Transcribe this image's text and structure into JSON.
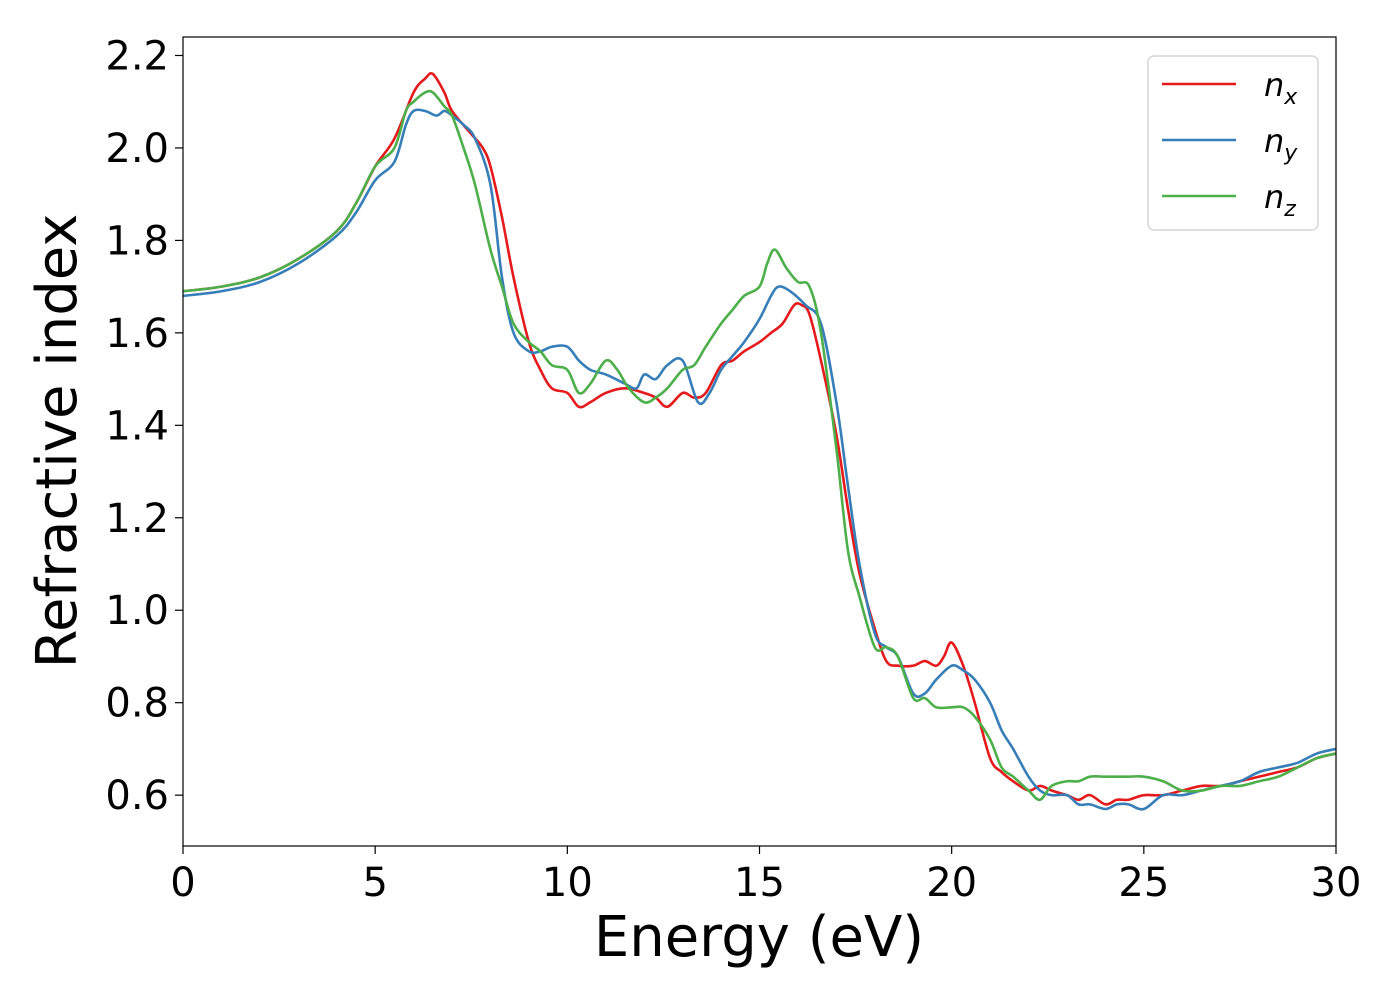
{
  "chart_data": {
    "type": "line",
    "title": "",
    "xlabel": "Energy (eV)",
    "ylabel": "Refractive index",
    "xlim": [
      0,
      30
    ],
    "ylim": [
      0.49,
      2.24
    ],
    "xticks": [
      0,
      5,
      10,
      15,
      20,
      25,
      30
    ],
    "xtick_labels": [
      "0",
      "5",
      "10",
      "15",
      "20",
      "25",
      "30"
    ],
    "yticks": [
      0.6,
      0.8,
      1.0,
      1.2,
      1.4,
      1.6,
      1.8,
      2.0,
      2.2
    ],
    "ytick_labels": [
      "0.6",
      "0.8",
      "1.0",
      "1.2",
      "1.4",
      "1.6",
      "1.8",
      "2.0",
      "2.2"
    ],
    "grid": false,
    "legend_position": "top-right",
    "series": [
      {
        "name": "n_x",
        "label_main": "n",
        "label_sub": "x",
        "color": "#e41a1c",
        "x": [
          0,
          1,
          2,
          3,
          4,
          4.5,
          5,
          5.5,
          6,
          6.3,
          6.5,
          6.8,
          7,
          7.5,
          7.8,
          8,
          8.3,
          8.6,
          9,
          9.3,
          9.6,
          10,
          10.3,
          10.6,
          11,
          11.5,
          12,
          12.3,
          12.6,
          13,
          13.3,
          13.6,
          14,
          14.3,
          14.6,
          15,
          15.3,
          15.6,
          15.9,
          16.1,
          16.3,
          16.6,
          17,
          17.3,
          17.6,
          18,
          18.3,
          18.6,
          19,
          19.3,
          19.6,
          19.8,
          20,
          20.3,
          20.6,
          21,
          21.3,
          21.6,
          22,
          22.3,
          22.6,
          23,
          23.3,
          23.6,
          24,
          24.3,
          24.6,
          25,
          25.5,
          26,
          26.5,
          27,
          27.5,
          28,
          28.5,
          29,
          29.5,
          30
        ],
        "y": [
          1.69,
          1.7,
          1.72,
          1.76,
          1.82,
          1.88,
          1.96,
          2.02,
          2.12,
          2.15,
          2.16,
          2.12,
          2.08,
          2.03,
          2.0,
          1.96,
          1.85,
          1.72,
          1.58,
          1.52,
          1.48,
          1.47,
          1.44,
          1.45,
          1.47,
          1.48,
          1.47,
          1.46,
          1.44,
          1.47,
          1.46,
          1.47,
          1.53,
          1.54,
          1.56,
          1.58,
          1.6,
          1.62,
          1.66,
          1.66,
          1.64,
          1.54,
          1.38,
          1.22,
          1.08,
          0.96,
          0.89,
          0.88,
          0.88,
          0.89,
          0.88,
          0.9,
          0.93,
          0.88,
          0.8,
          0.68,
          0.65,
          0.63,
          0.61,
          0.62,
          0.61,
          0.6,
          0.59,
          0.6,
          0.58,
          0.59,
          0.59,
          0.6,
          0.6,
          0.61,
          0.62,
          0.62,
          0.63,
          0.64,
          0.65,
          0.66,
          0.68,
          0.69
        ]
      },
      {
        "name": "n_y",
        "label_main": "n",
        "label_sub": "y",
        "color": "#377eb8",
        "x": [
          0,
          1,
          2,
          3,
          4,
          4.5,
          5,
          5.5,
          5.8,
          6,
          6.3,
          6.6,
          6.8,
          7,
          7.3,
          7.6,
          8,
          8.3,
          8.6,
          9,
          9.3,
          9.6,
          10,
          10.3,
          10.6,
          11,
          11.5,
          11.8,
          12,
          12.3,
          12.6,
          13,
          13.4,
          13.7,
          14,
          14.3,
          14.6,
          15,
          15.3,
          15.5,
          15.8,
          16.2,
          16.6,
          17,
          17.3,
          17.6,
          18,
          18.3,
          18.6,
          19,
          19.3,
          19.6,
          20,
          20.3,
          20.6,
          21,
          21.3,
          21.6,
          22,
          22.3,
          22.6,
          23,
          23.3,
          23.6,
          24,
          24.3,
          24.6,
          25,
          25.5,
          26,
          26.5,
          27,
          27.5,
          28,
          28.5,
          29,
          29.5,
          30
        ],
        "y": [
          1.68,
          1.69,
          1.71,
          1.75,
          1.81,
          1.86,
          1.93,
          1.97,
          2.05,
          2.08,
          2.08,
          2.07,
          2.08,
          2.07,
          2.05,
          2.02,
          1.92,
          1.72,
          1.6,
          1.56,
          1.56,
          1.57,
          1.57,
          1.54,
          1.52,
          1.51,
          1.49,
          1.48,
          1.51,
          1.5,
          1.53,
          1.54,
          1.45,
          1.47,
          1.52,
          1.55,
          1.58,
          1.63,
          1.68,
          1.7,
          1.69,
          1.66,
          1.62,
          1.45,
          1.27,
          1.1,
          0.95,
          0.92,
          0.9,
          0.82,
          0.82,
          0.85,
          0.88,
          0.87,
          0.85,
          0.8,
          0.74,
          0.7,
          0.64,
          0.61,
          0.6,
          0.6,
          0.58,
          0.58,
          0.57,
          0.58,
          0.58,
          0.57,
          0.6,
          0.6,
          0.61,
          0.62,
          0.63,
          0.65,
          0.66,
          0.67,
          0.69,
          0.7
        ]
      },
      {
        "name": "n_z",
        "label_main": "n",
        "label_sub": "z",
        "color": "#4daf4a",
        "x": [
          0,
          1,
          2,
          3,
          4,
          4.5,
          5,
          5.5,
          5.8,
          6,
          6.3,
          6.5,
          6.8,
          7,
          7.3,
          7.6,
          8,
          8.3,
          8.6,
          9,
          9.3,
          9.6,
          10,
          10.3,
          10.6,
          11,
          11.3,
          11.6,
          12,
          12.3,
          12.6,
          13,
          13.3,
          13.6,
          14,
          14.3,
          14.6,
          15,
          15.2,
          15.4,
          15.7,
          16,
          16.3,
          16.6,
          17,
          17.3,
          17.6,
          18,
          18.3,
          18.6,
          19,
          19.3,
          19.6,
          20,
          20.3,
          20.6,
          21,
          21.3,
          21.6,
          22,
          22.3,
          22.6,
          23,
          23.3,
          23.6,
          24,
          24.3,
          24.6,
          25,
          25.5,
          26,
          26.5,
          27,
          27.5,
          28,
          28.5,
          29,
          29.5,
          30
        ],
        "y": [
          1.69,
          1.7,
          1.72,
          1.76,
          1.82,
          1.88,
          1.96,
          2.0,
          2.08,
          2.1,
          2.12,
          2.12,
          2.09,
          2.07,
          2.0,
          1.92,
          1.78,
          1.7,
          1.62,
          1.58,
          1.56,
          1.53,
          1.52,
          1.47,
          1.49,
          1.54,
          1.52,
          1.48,
          1.45,
          1.46,
          1.48,
          1.52,
          1.53,
          1.57,
          1.62,
          1.65,
          1.68,
          1.7,
          1.75,
          1.78,
          1.74,
          1.71,
          1.7,
          1.6,
          1.35,
          1.13,
          1.03,
          0.92,
          0.92,
          0.9,
          0.81,
          0.81,
          0.79,
          0.79,
          0.79,
          0.77,
          0.72,
          0.66,
          0.64,
          0.61,
          0.59,
          0.62,
          0.63,
          0.63,
          0.64,
          0.64,
          0.64,
          0.64,
          0.64,
          0.63,
          0.61,
          0.61,
          0.62,
          0.62,
          0.63,
          0.64,
          0.66,
          0.68,
          0.69
        ]
      }
    ]
  }
}
